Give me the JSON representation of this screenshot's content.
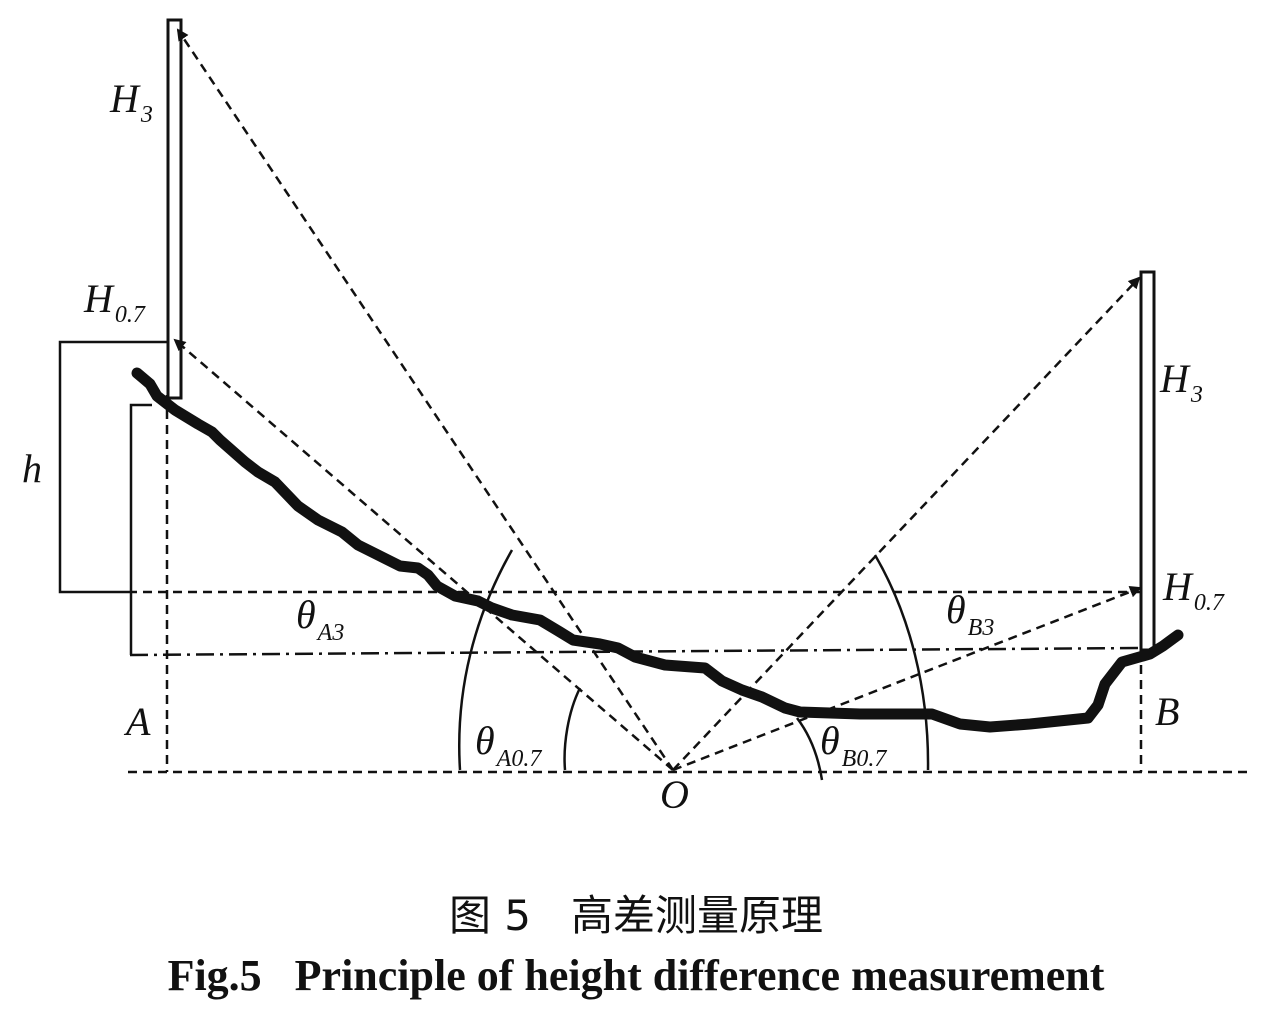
{
  "labels": {
    "rod_a_top": {
      "base": "H",
      "sub": "3"
    },
    "rod_a_low": {
      "base": "H",
      "sub": "0.7"
    },
    "rod_b_top": {
      "base": "H",
      "sub": "3"
    },
    "rod_b_low": {
      "base": "H",
      "sub": "0.7"
    },
    "height": "h",
    "point_a": "A",
    "point_b": "B",
    "origin": "O",
    "angle_a3": {
      "base": "θ",
      "sub": "A3"
    },
    "angle_a07": {
      "base": "θ",
      "sub": "A0.7"
    },
    "angle_b3": {
      "base": "θ",
      "sub": "B3"
    },
    "angle_b07": {
      "base": "θ",
      "sub": "B0.7"
    }
  },
  "caption": {
    "chinese": "图 5   高差测量原理",
    "english": "Fig.5   Principle of height difference measurement"
  }
}
